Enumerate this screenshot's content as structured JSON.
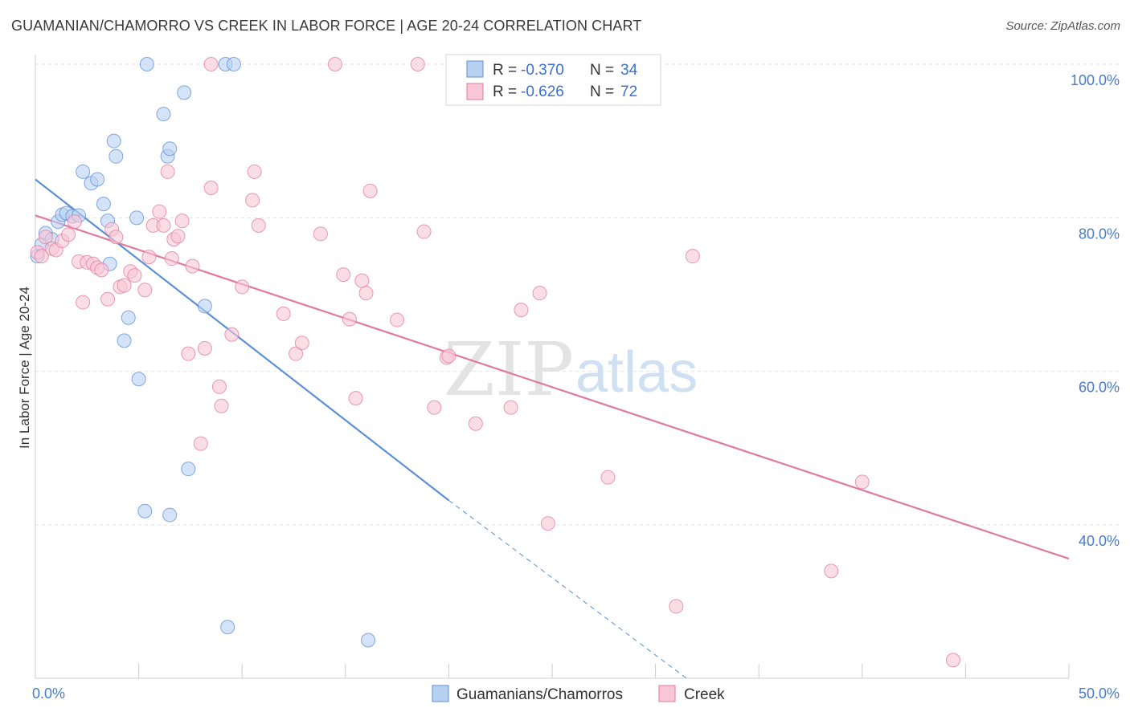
{
  "title": "GUAMANIAN/CHAMORRO VS CREEK IN LABOR FORCE | AGE 20-24 CORRELATION CHART",
  "source": "Source: ZipAtlas.com",
  "watermark": {
    "zip": "ZIP",
    "atlas": "atlas"
  },
  "legend": {
    "rows": [
      {
        "r_label": "R =",
        "r_value": "-0.370",
        "n_label": "N =",
        "n_value": "34",
        "fill": "#b8d1f2",
        "stroke": "#5b8fd6"
      },
      {
        "r_label": "R =",
        "r_value": "-0.626",
        "n_label": "N =",
        "n_value": "72",
        "fill": "#f8c6d6",
        "stroke": "#e07a9c"
      }
    ]
  },
  "bottom_legend": [
    {
      "label": "Guamanians/Chamorros",
      "fill": "#b8d1f2",
      "stroke": "#5b8fd6"
    },
    {
      "label": "Creek",
      "fill": "#f8c6d6",
      "stroke": "#e07a9c"
    }
  ],
  "chart_data": {
    "type": "scatter",
    "title": "GUAMANIAN/CHAMORRO VS CREEK IN LABOR FORCE | AGE 20-24 CORRELATION CHART",
    "xlabel": "",
    "ylabel": "In Labor Force | Age 20-24",
    "xlim": [
      0,
      50
    ],
    "ylim": [
      22,
      103
    ],
    "x_tick_labels": [
      {
        "value": 0,
        "label": "0.0%"
      },
      {
        "value": 50,
        "label": "50.0%"
      }
    ],
    "y_tick_labels": [
      {
        "value": 100,
        "label": "100.0%"
      },
      {
        "value": 80,
        "label": "80.0%"
      },
      {
        "value": 60,
        "label": "60.0%"
      },
      {
        "value": 40,
        "label": "40.0%"
      }
    ],
    "x_minor_ticks": [
      5,
      10,
      15,
      20,
      25,
      30,
      35,
      40,
      45,
      50
    ],
    "grid": true,
    "series": [
      {
        "name": "Guamanians/Chamorros",
        "color": "#5b8fd6",
        "fill": "#b8d1f2",
        "R": -0.37,
        "N": 34,
        "points": [
          [
            0.1,
            75.0
          ],
          [
            0.3,
            76.5
          ],
          [
            0.5,
            78.0
          ],
          [
            0.8,
            77.2
          ],
          [
            1.1,
            79.5
          ],
          [
            1.3,
            80.4
          ],
          [
            1.5,
            80.6
          ],
          [
            1.8,
            80.2
          ],
          [
            2.1,
            80.3
          ],
          [
            2.3,
            86.0
          ],
          [
            2.7,
            84.5
          ],
          [
            3.0,
            85.0
          ],
          [
            3.3,
            81.8
          ],
          [
            3.5,
            79.6
          ],
          [
            3.6,
            74.0
          ],
          [
            3.8,
            90.0
          ],
          [
            3.9,
            88.0
          ],
          [
            4.3,
            64.0
          ],
          [
            4.5,
            67.0
          ],
          [
            4.9,
            80.0
          ],
          [
            5.0,
            59.0
          ],
          [
            5.3,
            41.8
          ],
          [
            5.4,
            100.0
          ],
          [
            6.2,
            93.5
          ],
          [
            6.4,
            88.0
          ],
          [
            6.5,
            41.3
          ],
          [
            6.5,
            89.0
          ],
          [
            7.2,
            96.3
          ],
          [
            7.4,
            47.3
          ],
          [
            8.2,
            68.5
          ],
          [
            9.2,
            100.0
          ],
          [
            9.6,
            100.0
          ],
          [
            9.3,
            26.7
          ],
          [
            16.1,
            25.0
          ]
        ],
        "trend": {
          "x": [
            0,
            20
          ],
          "y": [
            85.0,
            43.2
          ],
          "dashed_extension": {
            "x": [
              20,
              31.5
            ],
            "y": [
              43.2,
              19.2
            ]
          }
        }
      },
      {
        "name": "Creek",
        "color": "#e07a9c",
        "fill": "#f8c6d6",
        "R": -0.626,
        "N": 72,
        "points": [
          [
            0.1,
            75.5
          ],
          [
            0.3,
            75.0
          ],
          [
            0.5,
            77.5
          ],
          [
            0.8,
            76.0
          ],
          [
            1.0,
            75.8
          ],
          [
            1.3,
            77.0
          ],
          [
            1.6,
            77.8
          ],
          [
            1.9,
            79.5
          ],
          [
            2.1,
            74.3
          ],
          [
            2.3,
            69.0
          ],
          [
            2.5,
            74.2
          ],
          [
            2.8,
            74.0
          ],
          [
            3.0,
            73.5
          ],
          [
            3.2,
            73.2
          ],
          [
            3.5,
            69.4
          ],
          [
            3.7,
            78.5
          ],
          [
            3.9,
            77.5
          ],
          [
            4.1,
            71.0
          ],
          [
            4.3,
            71.2
          ],
          [
            4.6,
            73.0
          ],
          [
            4.8,
            72.5
          ],
          [
            5.3,
            70.6
          ],
          [
            5.5,
            74.9
          ],
          [
            5.7,
            79.0
          ],
          [
            6.0,
            80.8
          ],
          [
            6.2,
            79.0
          ],
          [
            6.4,
            86.0
          ],
          [
            6.6,
            74.7
          ],
          [
            6.7,
            77.2
          ],
          [
            6.9,
            77.6
          ],
          [
            7.1,
            79.6
          ],
          [
            7.4,
            62.3
          ],
          [
            7.6,
            73.7
          ],
          [
            8.0,
            50.6
          ],
          [
            8.2,
            63.0
          ],
          [
            8.5,
            83.9
          ],
          [
            8.9,
            58.0
          ],
          [
            9.0,
            55.5
          ],
          [
            9.5,
            64.8
          ],
          [
            10.0,
            71.0
          ],
          [
            10.5,
            82.3
          ],
          [
            10.6,
            86.0
          ],
          [
            10.8,
            79.0
          ],
          [
            12.0,
            67.5
          ],
          [
            12.6,
            62.3
          ],
          [
            12.9,
            63.7
          ],
          [
            13.8,
            77.9
          ],
          [
            14.5,
            100.0
          ],
          [
            14.9,
            72.6
          ],
          [
            15.2,
            66.8
          ],
          [
            15.5,
            56.5
          ],
          [
            15.8,
            71.8
          ],
          [
            16.0,
            70.2
          ],
          [
            16.2,
            83.5
          ],
          [
            17.5,
            66.7
          ],
          [
            18.5,
            100.0
          ],
          [
            18.8,
            78.2
          ],
          [
            19.3,
            55.3
          ],
          [
            19.9,
            61.8
          ],
          [
            20.0,
            62.0
          ],
          [
            21.3,
            53.2
          ],
          [
            23.0,
            55.3
          ],
          [
            23.5,
            68.0
          ],
          [
            24.4,
            70.2
          ],
          [
            24.8,
            40.2
          ],
          [
            27.7,
            46.2
          ],
          [
            31.0,
            29.4
          ],
          [
            31.8,
            75.0
          ],
          [
            38.5,
            34.0
          ],
          [
            40.0,
            45.6
          ],
          [
            44.4,
            22.4
          ],
          [
            8.5,
            100.0
          ]
        ],
        "trend": {
          "x": [
            0,
            50
          ],
          "y": [
            80.3,
            35.6
          ]
        }
      }
    ]
  }
}
